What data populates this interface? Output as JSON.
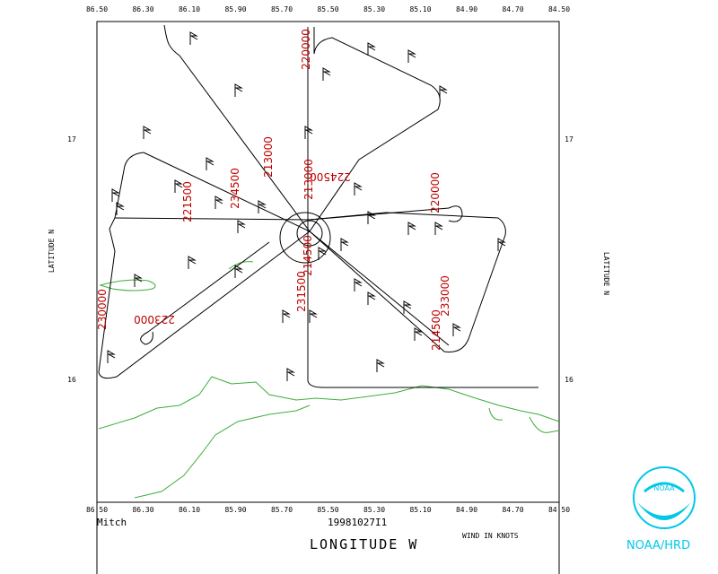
{
  "title_label": "Mitch",
  "flight_id": "19981027I1",
  "x_axis_label": "LONGITUDE  W",
  "y_axis_label": "LATITUDE  N",
  "wind_note": "WIND IN KNOTS",
  "org_label": "NOAA/HRD",
  "logo_text": "NOAA",
  "longitude_ticks": [
    "86.50",
    "86.30",
    "86.10",
    "85.90",
    "85.70",
    "85.50",
    "85.30",
    "85.10",
    "84.90",
    "84.70",
    "84.50"
  ],
  "latitude_ticks": [
    "17",
    "16"
  ],
  "time_labels": [
    "220000",
    "213000",
    "213000",
    "234500",
    "221500",
    "224500",
    "220000",
    "233000",
    "214500",
    "231500",
    "214500",
    "223000",
    "230000"
  ]
}
